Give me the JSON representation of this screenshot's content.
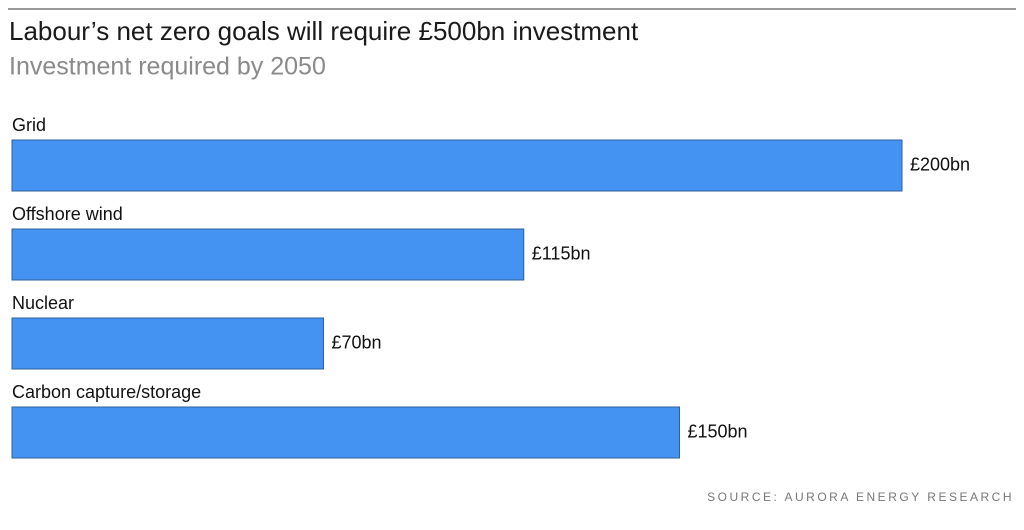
{
  "chart_data": {
    "type": "bar",
    "orientation": "horizontal",
    "title": "Labour’s net zero goals will require £500bn investment",
    "subtitle": "Investment required by 2050",
    "categories": [
      "Grid",
      "Offshore wind",
      "Nuclear",
      "Carbon capture/storage"
    ],
    "values": [
      200,
      115,
      70,
      150
    ],
    "value_labels": [
      "£200bn",
      "£115bn",
      "£70bn",
      "£150bn"
    ],
    "color": "#4493f2",
    "source": "SOURCE: AURORA ENERGY RESEARCH"
  }
}
